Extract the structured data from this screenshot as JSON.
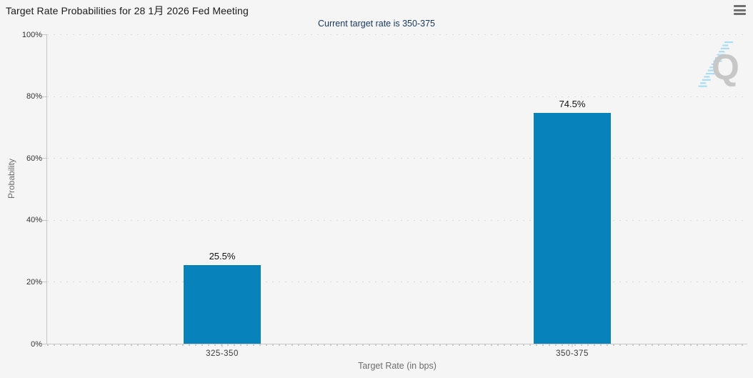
{
  "header": {
    "title": "Target Rate Probabilities for 28 1月 2026 Fed Meeting",
    "subtitle": "Current target rate is 350-375"
  },
  "menu": {
    "icon": "hamburger-menu-icon"
  },
  "watermark": {
    "letter": "Q"
  },
  "colors": {
    "background": "#f5f5f5",
    "bar": "#0882ba",
    "subtitle": "#17375e",
    "title": "#1a1a1a",
    "axis_titles": "#6e6e6e",
    "gridline": "#dcdcdc",
    "watermark_letter": "#c7c7c7",
    "watermark_stripes": "#aadcf2"
  },
  "chart_data": {
    "type": "bar",
    "title": "Target Rate Probabilities for 28 1月 2026 Fed Meeting",
    "subtitle": "Current target rate is 350-375",
    "categories": [
      "325-350",
      "350-375"
    ],
    "values": [
      25.5,
      74.5
    ],
    "value_labels": [
      "25.5%",
      "74.5%"
    ],
    "xlabel": "Target Rate (in bps)",
    "ylabel": "Probability",
    "ylim": [
      0,
      100
    ],
    "yticks": [
      0,
      20,
      40,
      60,
      80,
      100
    ],
    "ytick_labels": [
      "0%",
      "20%",
      "40%",
      "60%",
      "80%",
      "100%"
    ],
    "grid": "horizontal-dotted",
    "legend": "none",
    "bar_color": "#0882ba"
  }
}
